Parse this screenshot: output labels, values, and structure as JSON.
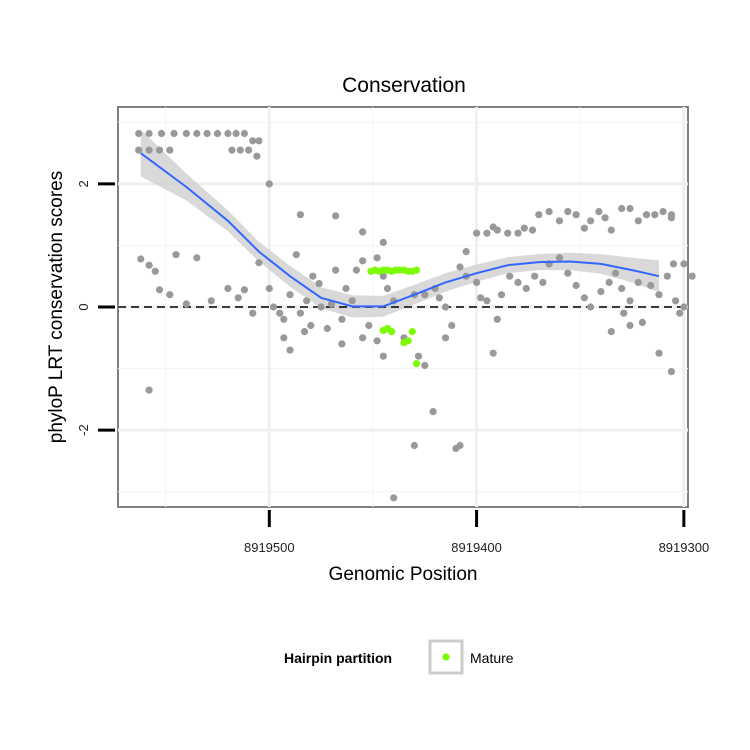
{
  "chart_data": {
    "type": "scatter",
    "title": "Conservation",
    "xlabel": "Genomic Position",
    "ylabel": "phyloP LRT conservation scores",
    "x_reversed": true,
    "xlim": [
      8919573,
      8919298
    ],
    "ylim": [
      -3.25,
      3.25
    ],
    "x_ticks": [
      8919500,
      8919400,
      8919300
    ],
    "x_tick_labels": [
      "8919500",
      "8919400",
      "8919300"
    ],
    "y_ticks": [
      -2,
      0,
      2
    ],
    "y_tick_labels": [
      "-2",
      "0",
      "2"
    ],
    "reference_line": {
      "y": 0,
      "style": "dashed"
    },
    "grid": true,
    "legend": {
      "title": "Hairpin partition",
      "position": "bottom",
      "entries": [
        {
          "label": "Mature",
          "color": "#7CFC00"
        }
      ]
    },
    "colors": {
      "background_points": "#999999",
      "mature": "#7CFC00",
      "smooth_line": "#3366FF",
      "confidence_band": "#CCCCCC"
    },
    "smooth": {
      "x": [
        8919562,
        8919540,
        8919520,
        8919505,
        8919490,
        8919475,
        8919460,
        8919445,
        8919430,
        8919415,
        8919400,
        8919385,
        8919370,
        8919355,
        8919340,
        8919325,
        8919312
      ],
      "y": [
        2.5,
        1.95,
        1.4,
        0.9,
        0.5,
        0.15,
        0.01,
        0.01,
        0.2,
        0.4,
        0.55,
        0.68,
        0.73,
        0.74,
        0.7,
        0.6,
        0.5
      ],
      "se": [
        0.38,
        0.22,
        0.17,
        0.16,
        0.17,
        0.17,
        0.18,
        0.17,
        0.16,
        0.15,
        0.14,
        0.13,
        0.13,
        0.14,
        0.16,
        0.2,
        0.26
      ]
    },
    "series": [
      {
        "name": "",
        "color": "#999999",
        "points": [
          [
            8919563,
            2.82
          ],
          [
            8919558,
            2.82
          ],
          [
            8919552,
            2.82
          ],
          [
            8919546,
            2.82
          ],
          [
            8919540,
            2.82
          ],
          [
            8919535,
            2.82
          ],
          [
            8919530,
            2.82
          ],
          [
            8919525,
            2.82
          ],
          [
            8919520,
            2.82
          ],
          [
            8919516,
            2.82
          ],
          [
            8919512,
            2.82
          ],
          [
            8919563,
            2.55
          ],
          [
            8919558,
            2.55
          ],
          [
            8919553,
            2.55
          ],
          [
            8919548,
            2.55
          ],
          [
            8919518,
            2.55
          ],
          [
            8919514,
            2.55
          ],
          [
            8919510,
            2.55
          ],
          [
            8919508,
            2.7
          ],
          [
            8919505,
            2.7
          ],
          [
            8919506,
            2.45
          ],
          [
            8919500,
            2.0
          ],
          [
            8919485,
            1.5
          ],
          [
            8919468,
            1.48
          ],
          [
            8919455,
            1.22
          ],
          [
            8919445,
            1.05
          ],
          [
            8919562,
            0.78
          ],
          [
            8919558,
            0.68
          ],
          [
            8919555,
            0.58
          ],
          [
            8919553,
            0.28
          ],
          [
            8919548,
            0.2
          ],
          [
            8919545,
            0.85
          ],
          [
            8919540,
            0.05
          ],
          [
            8919535,
            0.8
          ],
          [
            8919528,
            0.1
          ],
          [
            8919520,
            0.3
          ],
          [
            8919515,
            0.15
          ],
          [
            8919512,
            0.28
          ],
          [
            8919508,
            -0.1
          ],
          [
            8919505,
            0.72
          ],
          [
            8919500,
            0.3
          ],
          [
            8919498,
            0.0
          ],
          [
            8919495,
            -0.1
          ],
          [
            8919493,
            -0.2
          ],
          [
            8919490,
            0.2
          ],
          [
            8919487,
            0.85
          ],
          [
            8919485,
            -0.1
          ],
          [
            8919482,
            0.1
          ],
          [
            8919479,
            0.5
          ],
          [
            8919476,
            0.38
          ],
          [
            8919472,
            -0.35
          ],
          [
            8919558,
            -1.35
          ],
          [
            8919470,
            0.05
          ],
          [
            8919468,
            0.6
          ],
          [
            8919465,
            -0.2
          ],
          [
            8919463,
            0.3
          ],
          [
            8919460,
            0.1
          ],
          [
            8919458,
            0.6
          ],
          [
            8919455,
            0.75
          ],
          [
            8919452,
            -0.3
          ],
          [
            8919448,
            0.8
          ],
          [
            8919445,
            0.5
          ],
          [
            8919443,
            0.3
          ],
          [
            8919440,
            0.1
          ],
          [
            8919435,
            -0.5
          ],
          [
            8919430,
            -2.25
          ],
          [
            8919428,
            -0.8
          ],
          [
            8919425,
            0.2
          ],
          [
            8919420,
            0.3
          ],
          [
            8919418,
            0.15
          ],
          [
            8919415,
            0.0
          ],
          [
            8919412,
            -0.3
          ],
          [
            8919408,
            0.65
          ],
          [
            8919405,
            0.9
          ],
          [
            8919400,
            0.4
          ],
          [
            8919398,
            0.15
          ],
          [
            8919395,
            0.1
          ],
          [
            8919390,
            -0.2
          ],
          [
            8919388,
            0.2
          ],
          [
            8919493,
            -0.5
          ],
          [
            8919490,
            -0.7
          ],
          [
            8919483,
            -0.4
          ],
          [
            8919480,
            -0.3
          ],
          [
            8919475,
            0.0
          ],
          [
            8919470,
            0.05
          ],
          [
            8919465,
            -0.6
          ],
          [
            8919455,
            -0.5
          ],
          [
            8919448,
            -0.55
          ],
          [
            8919445,
            -0.8
          ],
          [
            8919425,
            -0.95
          ],
          [
            8919421,
            -1.7
          ],
          [
            8919410,
            -2.3
          ],
          [
            8919408,
            -2.25
          ],
          [
            8919415,
            -0.5
          ],
          [
            8919430,
            0.2
          ],
          [
            8919440,
            -3.1
          ],
          [
            8919405,
            0.5
          ],
          [
            8919400,
            1.2
          ],
          [
            8919395,
            1.2
          ],
          [
            8919392,
            1.3
          ],
          [
            8919390,
            1.25
          ],
          [
            8919385,
            1.2
          ],
          [
            8919380,
            1.2
          ],
          [
            8919377,
            1.28
          ],
          [
            8919373,
            1.25
          ],
          [
            8919370,
            1.5
          ],
          [
            8919365,
            1.55
          ],
          [
            8919360,
            1.4
          ],
          [
            8919356,
            1.55
          ],
          [
            8919352,
            1.5
          ],
          [
            8919348,
            1.28
          ],
          [
            8919345,
            1.4
          ],
          [
            8919341,
            1.55
          ],
          [
            8919338,
            1.45
          ],
          [
            8919335,
            1.25
          ],
          [
            8919330,
            1.6
          ],
          [
            8919326,
            1.6
          ],
          [
            8919322,
            1.4
          ],
          [
            8919318,
            1.5
          ],
          [
            8919314,
            1.5
          ],
          [
            8919310,
            1.55
          ],
          [
            8919306,
            1.45
          ],
          [
            8919384,
            0.5
          ],
          [
            8919380,
            0.4
          ],
          [
            8919376,
            0.3
          ],
          [
            8919372,
            0.5
          ],
          [
            8919368,
            0.4
          ],
          [
            8919365,
            0.7
          ],
          [
            8919360,
            0.8
          ],
          [
            8919356,
            0.55
          ],
          [
            8919352,
            0.35
          ],
          [
            8919348,
            0.15
          ],
          [
            8919345,
            0.0
          ],
          [
            8919340,
            0.25
          ],
          [
            8919336,
            0.4
          ],
          [
            8919333,
            0.55
          ],
          [
            8919330,
            0.3
          ],
          [
            8919326,
            0.1
          ],
          [
            8919322,
            0.4
          ],
          [
            8919320,
            -0.25
          ],
          [
            8919316,
            0.35
          ],
          [
            8919312,
            0.2
          ],
          [
            8919308,
            0.5
          ],
          [
            8919304,
            0.1
          ],
          [
            8919300,
            0.7
          ],
          [
            8919296,
            0.5
          ],
          [
            8919302,
            -0.1
          ],
          [
            8919335,
            -0.4
          ],
          [
            8919329,
            -0.1
          ],
          [
            8919326,
            -0.3
          ],
          [
            8919392,
            -0.75
          ],
          [
            8919312,
            -0.75
          ],
          [
            8919306,
            -1.05
          ],
          [
            8919300,
            0.0
          ],
          [
            8919305,
            0.7
          ],
          [
            8919306,
            1.5
          ]
        ]
      },
      {
        "name": "Mature",
        "color": "#7CFC00",
        "points": [
          [
            8919451,
            0.58
          ],
          [
            8919449,
            0.6
          ],
          [
            8919447,
            0.58
          ],
          [
            8919445,
            0.6
          ],
          [
            8919443,
            0.6
          ],
          [
            8919441,
            0.58
          ],
          [
            8919439,
            0.6
          ],
          [
            8919437,
            0.6
          ],
          [
            8919435,
            0.6
          ],
          [
            8919433,
            0.58
          ],
          [
            8919431,
            0.58
          ],
          [
            8919429,
            0.6
          ],
          [
            8919445,
            -0.38
          ],
          [
            8919443,
            -0.35
          ],
          [
            8919441,
            -0.4
          ],
          [
            8919435,
            -0.58
          ],
          [
            8919433,
            -0.55
          ],
          [
            8919431,
            -0.4
          ],
          [
            8919429,
            -0.92
          ]
        ]
      }
    ]
  }
}
